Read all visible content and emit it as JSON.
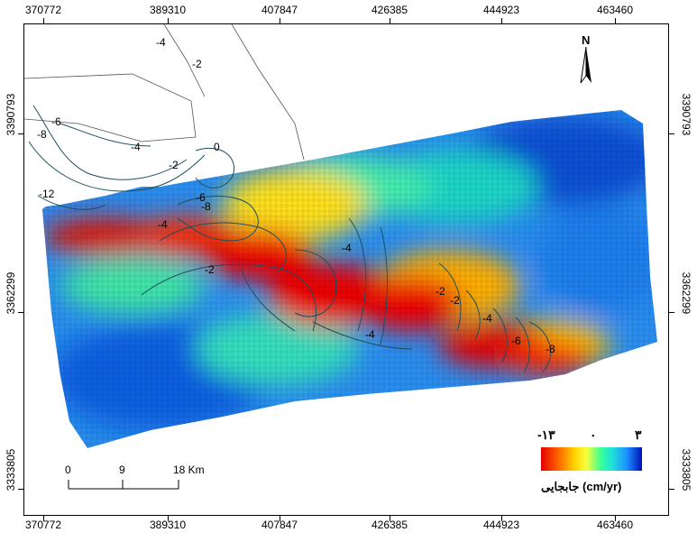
{
  "map": {
    "x_ticks": [
      "370772",
      "389310",
      "407847",
      "426385",
      "444923",
      "463460"
    ],
    "y_ticks": [
      "3390793",
      "3362299",
      "3333805"
    ],
    "north_label": "N",
    "contour_labels": [
      "-4",
      "-2",
      "-6",
      "-8",
      "-4",
      "0",
      "-2",
      "-12",
      "-6",
      "-8",
      "-4",
      "-2",
      "-4",
      "-4",
      "-2",
      "-2",
      "-4",
      "-6",
      "-8"
    ],
    "legend": {
      "min_label": "-۱۳",
      "mid_label": "۰",
      "max_label": "۳",
      "title": "جابجایی (cm/yr)",
      "colors": [
        "#e40000",
        "#ff6a00",
        "#ffd200",
        "#f7ff3c",
        "#34ff9a",
        "#1fe3d8",
        "#1e8fff",
        "#0010b8"
      ]
    },
    "scale_bar": {
      "labels": [
        "0",
        "9",
        "18 Km"
      ]
    }
  }
}
